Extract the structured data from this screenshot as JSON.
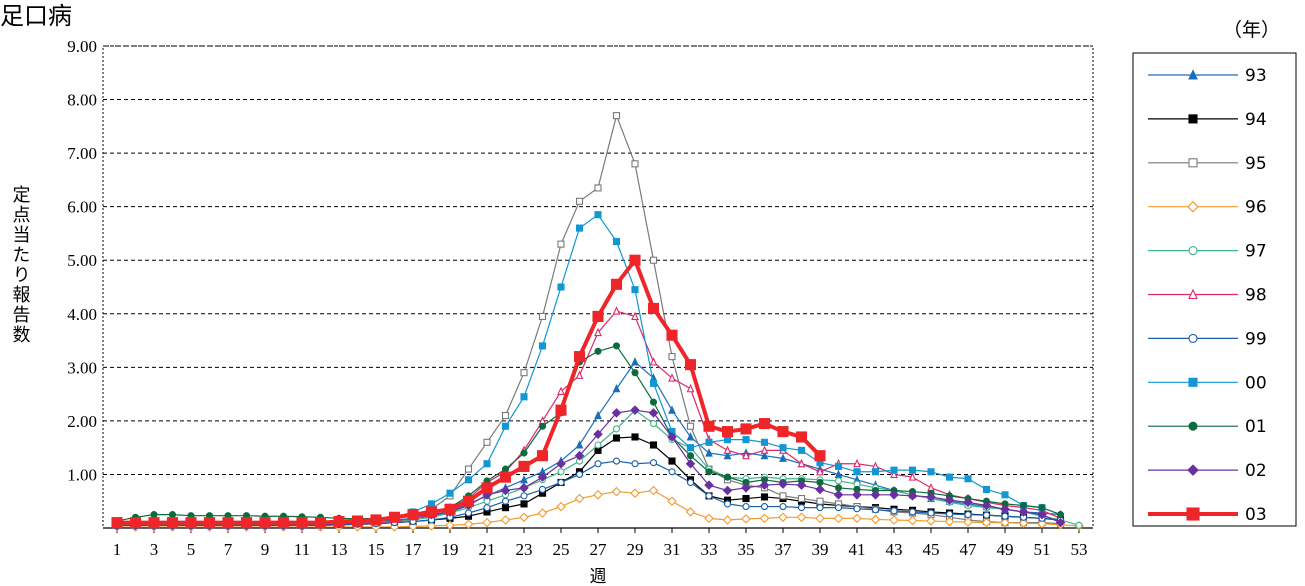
{
  "chart_data": {
    "type": "line",
    "title": "足口病",
    "ylabel": "定点当たり報告数",
    "xlabel": "週",
    "legend_title": "（年）",
    "legend_position": "right",
    "grid": true,
    "ylim": [
      0,
      9
    ],
    "xlim": [
      1,
      53
    ],
    "y_ticks": [
      "9.00",
      "8.00",
      "7.00",
      "6.00",
      "5.00",
      "4.00",
      "3.00",
      "2.00",
      "1.00"
    ],
    "x_ticks": [
      1,
      3,
      5,
      7,
      9,
      11,
      13,
      15,
      17,
      19,
      21,
      23,
      25,
      27,
      29,
      31,
      33,
      35,
      37,
      39,
      41,
      43,
      45,
      47,
      49,
      51,
      53
    ],
    "series": [
      {
        "name": "93",
        "color": "#1a6fbd",
        "marker": "triangle-filled",
        "width": 1.2,
        "values": [
          0.1,
          0.1,
          0.1,
          0.1,
          0.1,
          0.1,
          0.1,
          0.1,
          0.1,
          0.1,
          0.1,
          0.1,
          0.1,
          0.12,
          0.13,
          0.15,
          0.18,
          0.22,
          0.3,
          0.45,
          0.6,
          0.75,
          0.9,
          1.05,
          1.25,
          1.55,
          2.1,
          2.6,
          3.1,
          2.8,
          2.2,
          1.7,
          1.4,
          1.35,
          1.4,
          1.35,
          1.3,
          1.2,
          1.1,
          1.0,
          0.9,
          0.8,
          0.7,
          0.62,
          0.55,
          0.5,
          0.45,
          0.4,
          0.35,
          0.3,
          0.28,
          0.25,
          null
        ]
      },
      {
        "name": "94",
        "color": "#000000",
        "marker": "square-filled",
        "width": 1.2,
        "values": [
          0.05,
          0.05,
          0.05,
          0.05,
          0.05,
          0.05,
          0.05,
          0.05,
          0.05,
          0.05,
          0.05,
          0.05,
          0.06,
          0.07,
          0.08,
          0.1,
          0.12,
          0.15,
          0.18,
          0.22,
          0.3,
          0.38,
          0.45,
          0.65,
          0.85,
          1.05,
          1.45,
          1.68,
          1.7,
          1.55,
          1.25,
          0.9,
          0.6,
          0.52,
          0.55,
          0.58,
          0.55,
          0.5,
          0.45,
          0.42,
          0.4,
          0.38,
          0.35,
          0.33,
          0.3,
          0.28,
          0.26,
          0.24,
          0.22,
          0.2,
          0.18,
          0.15,
          null
        ]
      },
      {
        "name": "95",
        "color": "#7a7a7a",
        "marker": "square-open",
        "width": 1.2,
        "values": [
          0.05,
          0.05,
          0.05,
          0.05,
          0.05,
          0.05,
          0.05,
          0.05,
          0.06,
          0.06,
          0.06,
          0.07,
          0.08,
          0.1,
          0.12,
          0.18,
          0.25,
          0.35,
          0.6,
          1.1,
          1.6,
          2.1,
          2.9,
          3.95,
          5.3,
          6.1,
          6.35,
          7.7,
          6.8,
          5.0,
          3.2,
          1.9,
          1.1,
          0.9,
          0.8,
          0.75,
          0.6,
          0.55,
          0.5,
          0.45,
          0.4,
          0.35,
          0.3,
          0.28,
          0.25,
          0.2,
          0.15,
          0.12,
          0.1,
          0.1,
          0.1,
          0.08,
          null
        ]
      },
      {
        "name": "96",
        "color": "#f39a2e",
        "marker": "diamond-open",
        "width": 1.2,
        "values": [
          0.02,
          0.02,
          0.02,
          0.02,
          0.02,
          0.02,
          0.02,
          0.02,
          0.02,
          0.02,
          0.02,
          0.02,
          0.02,
          0.02,
          0.02,
          0.02,
          0.03,
          0.04,
          0.05,
          0.07,
          0.1,
          0.15,
          0.2,
          0.28,
          0.4,
          0.55,
          0.62,
          0.68,
          0.65,
          0.7,
          0.5,
          0.3,
          0.18,
          0.15,
          0.17,
          0.18,
          0.2,
          0.2,
          0.18,
          0.18,
          0.18,
          0.16,
          0.15,
          0.14,
          0.13,
          0.12,
          0.11,
          0.1,
          0.1,
          0.09,
          0.08,
          0.06,
          0.04
        ]
      },
      {
        "name": "97",
        "color": "#3fb58a",
        "marker": "circle-open",
        "width": 1.2,
        "values": [
          0.05,
          0.05,
          0.05,
          0.05,
          0.05,
          0.05,
          0.05,
          0.05,
          0.05,
          0.05,
          0.05,
          0.05,
          0.06,
          0.07,
          0.09,
          0.12,
          0.15,
          0.2,
          0.28,
          0.38,
          0.5,
          0.62,
          0.75,
          0.9,
          1.05,
          1.25,
          1.55,
          1.85,
          2.2,
          1.95,
          1.65,
          1.5,
          1.1,
          0.95,
          0.92,
          0.95,
          0.92,
          0.92,
          0.9,
          0.88,
          0.82,
          0.75,
          0.7,
          0.62,
          0.55,
          0.48,
          0.42,
          0.38,
          0.35,
          0.3,
          0.22,
          0.15,
          0.05
        ]
      },
      {
        "name": "98",
        "color": "#e0276a",
        "marker": "triangle-open",
        "width": 1.2,
        "values": [
          0.05,
          0.05,
          0.05,
          0.05,
          0.05,
          0.05,
          0.05,
          0.05,
          0.05,
          0.05,
          0.05,
          0.06,
          0.07,
          0.08,
          0.1,
          0.13,
          0.18,
          0.25,
          0.38,
          0.55,
          0.85,
          1.05,
          1.45,
          2.0,
          2.55,
          2.85,
          3.65,
          4.05,
          3.95,
          3.1,
          2.8,
          2.6,
          1.65,
          1.45,
          1.35,
          1.45,
          1.45,
          1.2,
          1.05,
          1.2,
          1.2,
          1.15,
          1.0,
          0.95,
          0.75,
          0.62,
          0.55,
          0.48,
          0.42,
          0.38,
          0.33,
          0.18,
          null
        ]
      },
      {
        "name": "99",
        "color": "#1a5fa8",
        "marker": "circle-open",
        "width": 1.2,
        "values": [
          0.05,
          0.05,
          0.05,
          0.05,
          0.05,
          0.05,
          0.05,
          0.05,
          0.05,
          0.05,
          0.05,
          0.05,
          0.06,
          0.07,
          0.08,
          0.1,
          0.12,
          0.15,
          0.2,
          0.28,
          0.38,
          0.5,
          0.6,
          0.72,
          0.85,
          1.0,
          1.2,
          1.25,
          1.2,
          1.22,
          1.05,
          0.85,
          0.6,
          0.45,
          0.4,
          0.4,
          0.4,
          0.38,
          0.38,
          0.38,
          0.36,
          0.34,
          0.32,
          0.3,
          0.28,
          0.26,
          0.25,
          0.24,
          0.22,
          0.2,
          0.18,
          0.15,
          null
        ]
      },
      {
        "name": "00",
        "color": "#1296d4",
        "marker": "square-filled",
        "width": 1.2,
        "values": [
          0.05,
          0.05,
          0.05,
          0.05,
          0.05,
          0.05,
          0.05,
          0.05,
          0.05,
          0.05,
          0.05,
          0.06,
          0.08,
          0.1,
          0.15,
          0.2,
          0.3,
          0.45,
          0.65,
          0.9,
          1.2,
          1.9,
          2.45,
          3.4,
          4.5,
          5.6,
          5.85,
          5.35,
          4.45,
          2.7,
          1.8,
          1.5,
          1.6,
          1.65,
          1.65,
          1.6,
          1.5,
          1.45,
          1.22,
          1.15,
          1.05,
          1.05,
          1.08,
          1.08,
          1.05,
          0.95,
          0.92,
          0.72,
          0.62,
          0.42,
          0.38,
          null
        ]
      },
      {
        "name": "01",
        "color": "#0c6b3c",
        "marker": "circle-filled",
        "width": 1.2,
        "values": [
          0.13,
          0.2,
          0.25,
          0.25,
          0.23,
          0.23,
          0.23,
          0.23,
          0.22,
          0.22,
          0.21,
          0.2,
          0.18,
          0.17,
          0.18,
          0.2,
          0.22,
          0.28,
          0.38,
          0.6,
          0.88,
          1.1,
          1.4,
          1.9,
          2.15,
          3.1,
          3.3,
          3.4,
          2.9,
          2.35,
          1.7,
          1.35,
          1.05,
          0.95,
          0.85,
          0.9,
          0.85,
          0.88,
          0.85,
          0.75,
          0.72,
          0.7,
          0.7,
          0.68,
          0.65,
          0.6,
          0.55,
          0.5,
          0.45,
          0.42,
          0.38,
          0.25,
          null
        ]
      },
      {
        "name": "02",
        "color": "#6a2fa0",
        "marker": "diamond-filled",
        "width": 1.2,
        "values": [
          0.05,
          0.05,
          0.05,
          0.05,
          0.05,
          0.05,
          0.05,
          0.05,
          0.05,
          0.05,
          0.05,
          0.06,
          0.08,
          0.1,
          0.15,
          0.2,
          0.22,
          0.25,
          0.3,
          0.42,
          0.62,
          0.7,
          0.75,
          0.95,
          1.2,
          1.35,
          1.75,
          2.15,
          2.2,
          2.15,
          1.7,
          1.2,
          0.8,
          0.7,
          0.75,
          0.8,
          0.82,
          0.8,
          0.72,
          0.62,
          0.62,
          0.62,
          0.62,
          0.6,
          0.58,
          0.52,
          0.48,
          0.42,
          0.35,
          0.3,
          0.25,
          0.1,
          null
        ]
      },
      {
        "name": "03",
        "color": "#ee2629",
        "marker": "square-filled",
        "width": 4,
        "values": [
          0.1,
          0.1,
          0.1,
          0.1,
          0.1,
          0.1,
          0.1,
          0.1,
          0.1,
          0.1,
          0.1,
          0.1,
          0.12,
          0.13,
          0.15,
          0.2,
          0.25,
          0.3,
          0.35,
          0.5,
          0.75,
          0.95,
          1.15,
          1.35,
          2.2,
          3.2,
          3.95,
          4.55,
          5.0,
          4.1,
          3.6,
          3.05,
          1.9,
          1.8,
          1.85,
          1.95,
          1.8,
          1.7,
          1.35,
          null,
          null,
          null,
          null,
          null,
          null,
          null,
          null,
          null,
          null,
          null,
          null,
          null,
          null
        ]
      }
    ]
  }
}
